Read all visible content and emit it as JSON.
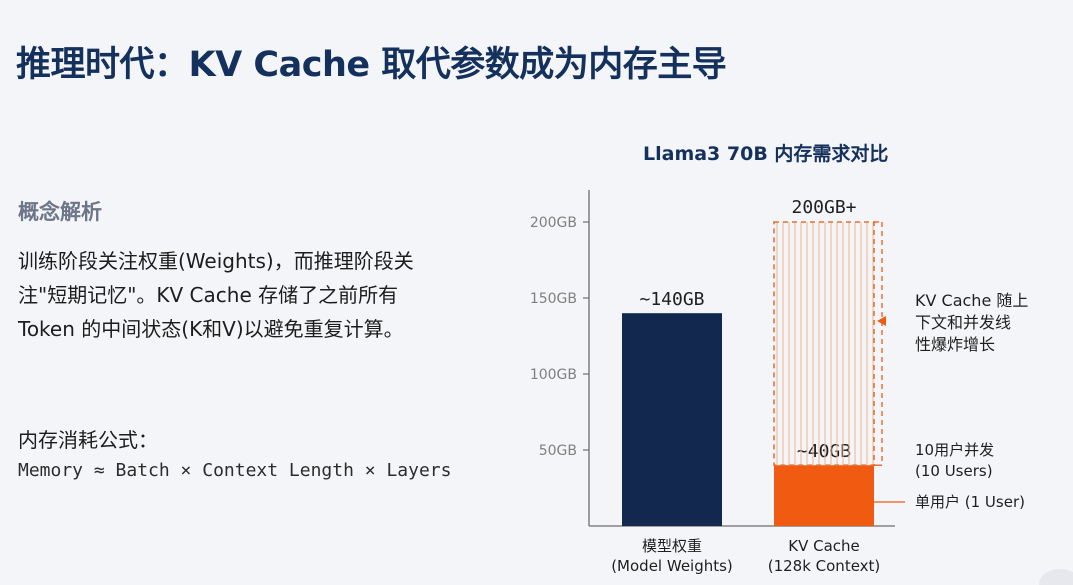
{
  "header": {
    "title": "推理时代：KV Cache 取代参数成为内存主导"
  },
  "concept": {
    "heading": "概念解析",
    "lines": [
      "训练阶段关注权重(Weights)，而推理阶段关",
      "注\"短期记忆\"。KV Cache 存储了之前所有",
      "Token 的中间状态(K和V)以避免重复计算。"
    ]
  },
  "formula": {
    "label": "内存消耗公式：",
    "expression": "Memory ≈ Batch × Context Length × Layers"
  },
  "chart_data": {
    "type": "bar",
    "title": "Llama3 70B 内存需求对比",
    "ylim": [
      0,
      210
    ],
    "yticks": [
      50,
      100,
      150,
      200
    ],
    "ytick_labels": [
      "50GB",
      "100GB",
      "150GB",
      "200GB"
    ],
    "categories": [
      {
        "line1": "模型权重",
        "line2": "(Model Weights)"
      },
      {
        "line1": "KV Cache",
        "line2": "(128k Context)"
      }
    ],
    "bars": [
      {
        "category": 0,
        "value": 140,
        "label": "~140GB",
        "color": "#12284f",
        "style": "solid"
      },
      {
        "category": 1,
        "value": 40,
        "label": "~40GB",
        "color": "#f05a11",
        "style": "solid"
      },
      {
        "category": 1,
        "value_from": 40,
        "value": 200,
        "label": "200GB+",
        "color": "#e0753a",
        "style": "dashed-hatched"
      }
    ],
    "annotations": [
      {
        "lines": [
          "KV Cache 随上",
          "下文和并发线",
          "性爆炸增长"
        ],
        "color": "#e0642a"
      },
      {
        "lines": [
          "10用户并发",
          "(10 Users)"
        ],
        "color": "#e0642a"
      },
      {
        "lines": [
          "单用户 (1 User)"
        ],
        "color": "#e0642a"
      }
    ],
    "colors": {
      "axis": "#6d6d6d",
      "tick_text": "#808080",
      "accent": "#f05a11",
      "navy": "#12284f"
    },
    "grid": false
  }
}
